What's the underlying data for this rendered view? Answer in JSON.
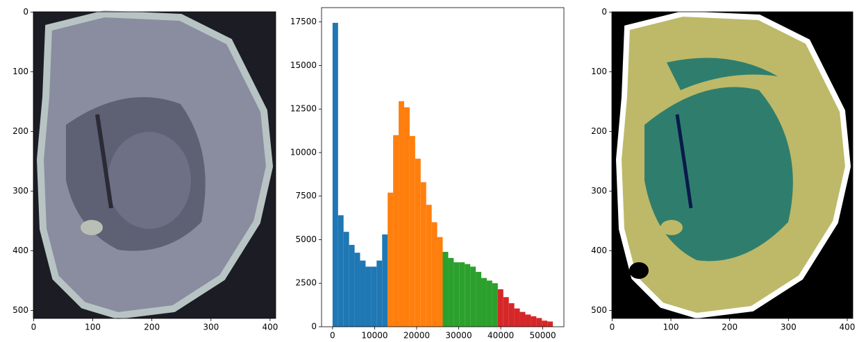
{
  "chart_data": [
    {
      "type": "image",
      "xlim": [
        -0.5,
        409.5
      ],
      "ylim": [
        513.5,
        -0.5
      ],
      "xticks": [
        0,
        100,
        200,
        300,
        400
      ],
      "yticks": [
        0,
        100,
        200,
        300,
        400,
        500
      ]
    },
    {
      "type": "histogram",
      "xlim": [
        -2620,
        55020
      ],
      "ylim": [
        0,
        18322
      ],
      "xticks": [
        0,
        10000,
        20000,
        30000,
        40000,
        50000
      ],
      "yticks": [
        0,
        2500,
        5000,
        7500,
        10000,
        12500,
        15000,
        17500
      ],
      "series": [
        {
          "color": "#1f77b4",
          "bins": [
            0,
            1310,
            2620,
            3930,
            5240,
            6550,
            7860,
            9170,
            10480,
            11790,
            13100
          ],
          "values": [
            17450,
            6400,
            5450,
            4700,
            4250,
            3800,
            3450,
            3450,
            3800,
            5300
          ]
        },
        {
          "color": "#ff7f0e",
          "bins": [
            13100,
            14410,
            15720,
            17030,
            18340,
            19650,
            20960,
            22270,
            23580,
            24890,
            26200
          ],
          "values": [
            7700,
            11000,
            12950,
            12600,
            10950,
            9650,
            8300,
            7000,
            6000,
            5150
          ]
        },
        {
          "color": "#2ca02c",
          "bins": [
            26200,
            27510,
            28820,
            30130,
            31440,
            32750,
            34060,
            35370,
            36680,
            37990,
            39300
          ],
          "values": [
            4300,
            3950,
            3700,
            3700,
            3600,
            3450,
            3150,
            2800,
            2650,
            2500
          ]
        },
        {
          "color": "#d62728",
          "bins": [
            39300,
            40610,
            41920,
            43230,
            44540,
            45850,
            47160,
            48470,
            49780,
            51090,
            52400
          ],
          "values": [
            2150,
            1700,
            1350,
            1050,
            850,
            700,
            600,
            500,
            350,
            300
          ]
        }
      ]
    },
    {
      "type": "image",
      "xlim": [
        -0.5,
        409.5
      ],
      "ylim": [
        513.5,
        -0.5
      ],
      "xticks": [
        0,
        100,
        200,
        300,
        400
      ],
      "yticks": [
        0,
        100,
        200,
        300,
        400,
        500
      ]
    }
  ]
}
